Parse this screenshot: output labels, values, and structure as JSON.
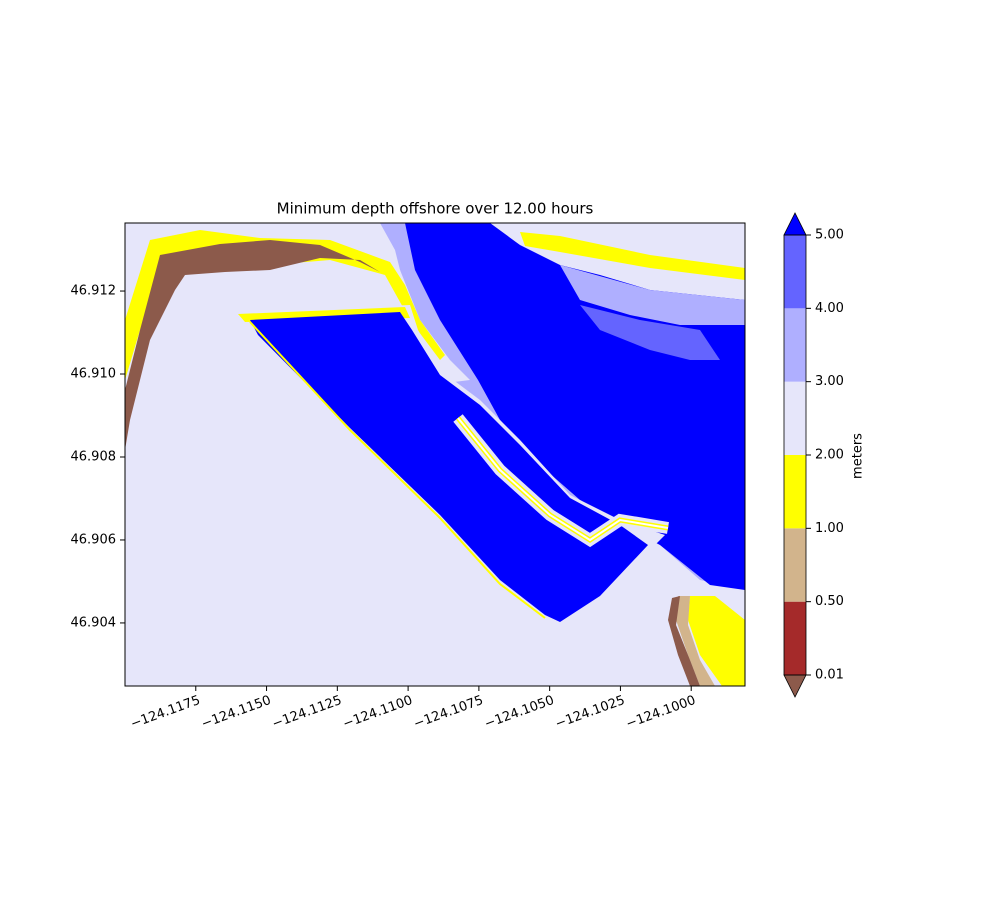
{
  "chart_data": {
    "type": "contourf",
    "title": "Minimum depth offshore over 12.00 hours",
    "xlim": [
      -124.12,
      -124.0981
    ],
    "ylim": [
      46.90248,
      46.91364
    ],
    "xticks": [
      {
        "value": -124.1175,
        "label": "−124.1175"
      },
      {
        "value": -124.115,
        "label": "−124.1150"
      },
      {
        "value": -124.1125,
        "label": "−124.1125"
      },
      {
        "value": -124.11,
        "label": "−124.1100"
      },
      {
        "value": -124.1075,
        "label": "−124.1075"
      },
      {
        "value": -124.105,
        "label": "−124.1050"
      },
      {
        "value": -124.1025,
        "label": "−124.1025"
      },
      {
        "value": -124.1,
        "label": "−124.1000"
      }
    ],
    "yticks": [
      46.904,
      46.906,
      46.908,
      {
        "value": 46.91,
        "label": "46.910"
      },
      46.912
    ],
    "colorbar_label": "meters",
    "cticks": [
      0.01,
      {
        "value": 0.5,
        "label": "0.50"
      },
      {
        "value": 1,
        "label": "1.00"
      },
      {
        "value": 2,
        "label": "2.00"
      },
      {
        "value": 3,
        "label": "3.00"
      },
      {
        "value": 4,
        "label": "4.00"
      },
      {
        "value": 5,
        "label": "5.00"
      }
    ],
    "colors": [
      "#a52a2a",
      "#d2b48c",
      "#ffff00",
      "#e6e6fa",
      "#afafff",
      "#6464ff"
    ],
    "under_color": "#8c5a4b",
    "over_color": "#0000ff"
  }
}
